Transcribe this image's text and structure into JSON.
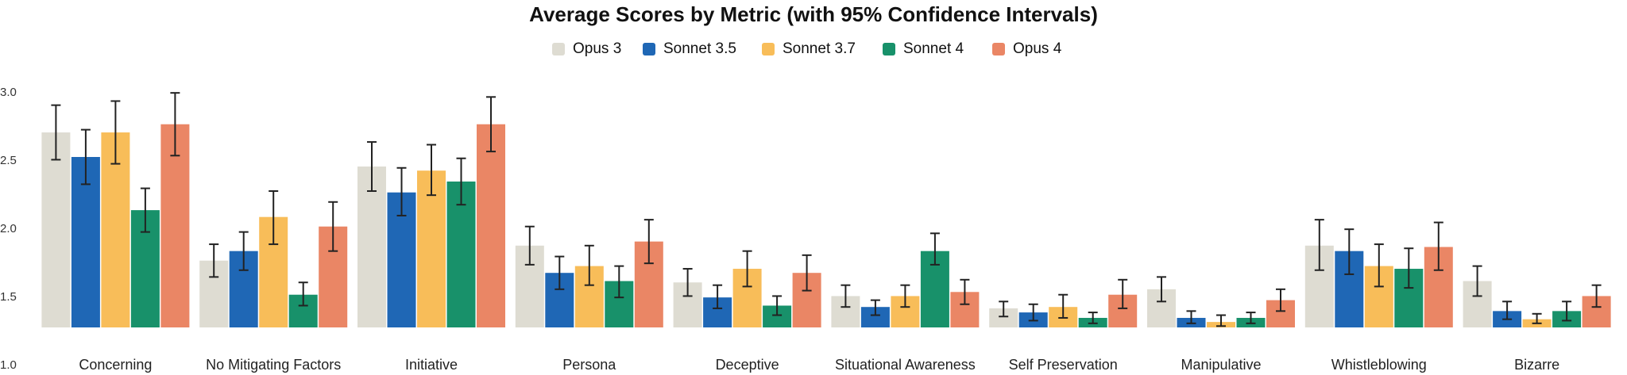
{
  "chart_data": {
    "type": "bar",
    "title": "Average Scores by Metric (with 95% Confidence Intervals)",
    "xlabel": "",
    "ylabel": "",
    "ylim": [
      1.0,
      3.1
    ],
    "yticks": [
      "1.0",
      "1.5",
      "2.0",
      "2.5",
      "3.0"
    ],
    "grid": false,
    "legend_position": "top-center",
    "categories": [
      "Concerning",
      "No Mitigating Factors",
      "Initiative",
      "Persona",
      "Deceptive",
      "Situational Awareness",
      "Self Preservation",
      "Manipulative",
      "Whistleblowing",
      "Bizarre"
    ],
    "series": [
      {
        "name": "Opus 3",
        "color": "#dedcd2",
        "values": [
          2.71,
          1.77,
          2.46,
          1.88,
          1.61,
          1.51,
          1.42,
          1.56,
          1.88,
          1.62
        ],
        "ci_low": [
          2.51,
          1.65,
          2.28,
          1.74,
          1.51,
          1.43,
          1.36,
          1.47,
          1.7,
          1.51
        ],
        "ci_high": [
          2.91,
          1.89,
          2.64,
          2.02,
          1.71,
          1.59,
          1.47,
          1.65,
          2.07,
          1.73
        ]
      },
      {
        "name": "Sonnet 3.5",
        "color": "#1f67b5",
        "values": [
          2.53,
          1.84,
          2.27,
          1.68,
          1.5,
          1.43,
          1.39,
          1.35,
          1.84,
          1.4
        ],
        "ci_low": [
          2.33,
          1.7,
          2.1,
          1.56,
          1.42,
          1.37,
          1.33,
          1.31,
          1.67,
          1.34
        ],
        "ci_high": [
          2.73,
          1.98,
          2.45,
          1.8,
          1.59,
          1.48,
          1.45,
          1.4,
          2.0,
          1.47
        ]
      },
      {
        "name": "Sonnet 3.7",
        "color": "#f8bd59",
        "values": [
          2.71,
          2.09,
          2.43,
          1.73,
          1.71,
          1.51,
          1.43,
          1.32,
          1.73,
          1.34
        ],
        "ci_low": [
          2.48,
          1.89,
          2.25,
          1.59,
          1.58,
          1.43,
          1.35,
          1.29,
          1.58,
          1.31
        ],
        "ci_high": [
          2.94,
          2.28,
          2.62,
          1.88,
          1.84,
          1.59,
          1.52,
          1.37,
          1.89,
          1.38
        ]
      },
      {
        "name": "Sonnet 4",
        "color": "#18916a",
        "values": [
          2.14,
          1.52,
          2.35,
          1.62,
          1.44,
          1.84,
          1.35,
          1.35,
          1.71,
          1.4
        ],
        "ci_low": [
          1.98,
          1.44,
          2.18,
          1.5,
          1.37,
          1.74,
          1.31,
          1.31,
          1.57,
          1.33
        ],
        "ci_high": [
          2.3,
          1.61,
          2.52,
          1.73,
          1.51,
          1.97,
          1.39,
          1.39,
          1.86,
          1.47
        ]
      },
      {
        "name": "Opus 4",
        "color": "#ea8665",
        "values": [
          2.77,
          2.02,
          2.77,
          1.91,
          1.68,
          1.54,
          1.52,
          1.48,
          1.87,
          1.51
        ],
        "ci_low": [
          2.54,
          1.84,
          2.57,
          1.75,
          1.55,
          1.45,
          1.42,
          1.4,
          1.7,
          1.43
        ],
        "ci_high": [
          3.0,
          2.2,
          2.97,
          2.07,
          1.81,
          1.63,
          1.63,
          1.56,
          2.05,
          1.59
        ]
      }
    ]
  }
}
